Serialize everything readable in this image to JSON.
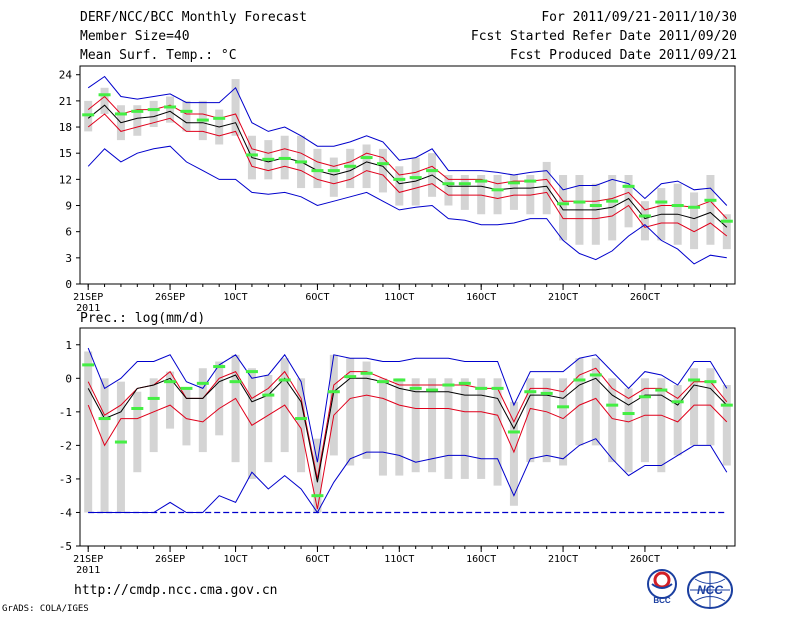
{
  "header": {
    "title": "DERF/NCC/BCC Monthly Forecast",
    "member_size": "Member Size=40",
    "panel1_var": "Mean Surf. Temp.: °C",
    "period": "For 2011/09/21-2011/10/30",
    "fcst_started": "Fcst Started Refer Date 2011/09/20",
    "fcst_produced": "Fcst Produced Date 2011/09/21"
  },
  "footer": {
    "url": "http://cmdp.ncc.cma.gov.cn",
    "grads": "GrADS: COLA/IGES",
    "logo_bcc": "BCC",
    "logo_ncc": "NCC"
  },
  "colors": {
    "ensemble_mean": "#000000",
    "spread_band": "#e0001b",
    "envelope": "#0000cc",
    "member_box": "#d4d4d4",
    "member_median": "#44ee44",
    "climatology_floor": "#0000cc"
  },
  "chart_data": [
    {
      "type": "line",
      "title": "Mean Surf. Temp.: °C",
      "ylim": [
        0,
        25
      ],
      "yticks": [
        0,
        3,
        6,
        9,
        12,
        15,
        18,
        21,
        24
      ],
      "xlim": [
        0.5,
        40.5
      ],
      "xticks": [
        {
          "day": 1,
          "label": "21SEP",
          "sub": "2011"
        },
        {
          "day": 6,
          "label": "26SEP",
          "sub": ""
        },
        {
          "day": 10,
          "label": "1OCT",
          "sub": ""
        },
        {
          "day": 15,
          "label": "6OCT",
          "sub": ""
        },
        {
          "day": 20,
          "label": "11OCT",
          "sub": ""
        },
        {
          "day": 25,
          "label": "16OCT",
          "sub": ""
        },
        {
          "day": 30,
          "label": "21OCT",
          "sub": ""
        },
        {
          "day": 35,
          "label": "26OCT",
          "sub": ""
        }
      ],
      "series": [
        {
          "name": "max",
          "values": [
            22.5,
            23.8,
            21.5,
            21.2,
            21.5,
            21.8,
            20.8,
            20.8,
            20.8,
            22.5,
            18.5,
            17.5,
            18.0,
            17.0,
            15.8,
            15.8,
            16.3,
            17.0,
            16.3,
            14.2,
            14.5,
            15.5,
            13.0,
            13.0,
            13.0,
            12.8,
            12.5,
            12.8,
            13.0,
            10.8,
            11.3,
            11.3,
            12.0,
            11.5,
            9.8,
            11.5,
            11.8,
            10.8,
            11.0,
            9.0
          ]
        },
        {
          "name": "mean_plus_sd",
          "values": [
            20.0,
            21.5,
            19.5,
            20.0,
            20.0,
            20.5,
            19.5,
            19.5,
            19.0,
            19.5,
            15.5,
            15.0,
            15.5,
            15.0,
            14.0,
            13.5,
            14.0,
            15.0,
            14.5,
            12.5,
            12.8,
            13.5,
            12.0,
            12.0,
            12.0,
            11.5,
            11.8,
            11.8,
            12.0,
            9.5,
            9.5,
            9.5,
            9.8,
            10.5,
            8.5,
            9.0,
            9.0,
            8.8,
            9.5,
            7.5
          ]
        },
        {
          "name": "mean",
          "values": [
            19.0,
            20.5,
            18.5,
            19.0,
            19.2,
            19.8,
            18.5,
            18.5,
            18.0,
            18.5,
            14.5,
            14.0,
            14.5,
            14.0,
            13.0,
            12.5,
            13.0,
            14.0,
            13.5,
            11.5,
            11.8,
            12.5,
            11.2,
            11.2,
            11.2,
            10.8,
            11.0,
            11.0,
            11.2,
            8.5,
            8.5,
            8.5,
            8.8,
            9.8,
            7.5,
            8.0,
            8.0,
            7.5,
            8.2,
            6.5
          ]
        },
        {
          "name": "mean_minus_sd",
          "values": [
            18.0,
            19.5,
            17.5,
            18.0,
            18.5,
            19.0,
            17.5,
            17.5,
            17.0,
            17.5,
            13.5,
            13.0,
            13.5,
            13.0,
            12.0,
            11.5,
            12.0,
            13.0,
            12.5,
            10.5,
            11.0,
            11.5,
            10.2,
            10.2,
            10.2,
            9.8,
            10.2,
            10.2,
            10.5,
            7.5,
            7.5,
            7.5,
            7.8,
            9.0,
            6.5,
            7.0,
            7.0,
            6.0,
            7.0,
            5.5
          ]
        },
        {
          "name": "min",
          "values": [
            13.5,
            15.5,
            14.0,
            15.0,
            15.5,
            15.8,
            14.0,
            13.0,
            12.0,
            12.0,
            10.5,
            10.3,
            10.5,
            10.0,
            9.0,
            9.5,
            10.0,
            10.5,
            9.5,
            8.5,
            8.8,
            9.0,
            7.5,
            7.3,
            6.8,
            6.8,
            7.0,
            7.5,
            7.5,
            5.0,
            3.5,
            2.8,
            3.8,
            5.5,
            6.8,
            5.0,
            4.0,
            2.3,
            3.3,
            3.0
          ]
        }
      ],
      "box_q1": [
        17.5,
        19.5,
        16.5,
        17.0,
        18.0,
        18.5,
        17.5,
        16.5,
        16.0,
        17.0,
        12.0,
        12.0,
        12.0,
        11.0,
        11.0,
        10.0,
        11.0,
        11.0,
        10.5,
        9.0,
        9.0,
        10.0,
        9.0,
        8.5,
        8.0,
        8.0,
        8.5,
        8.0,
        8.0,
        5.0,
        4.5,
        4.5,
        5.0,
        6.5,
        5.0,
        5.0,
        4.5,
        4.0,
        4.5,
        4.0
      ],
      "box_q3": [
        21.0,
        22.5,
        20.5,
        20.5,
        21.0,
        21.5,
        21.0,
        21.0,
        20.0,
        23.5,
        17.0,
        16.5,
        17.0,
        17.0,
        15.5,
        14.5,
        15.5,
        16.0,
        15.5,
        13.5,
        14.5,
        15.0,
        12.5,
        12.5,
        12.5,
        12.5,
        12.5,
        12.5,
        14.0,
        12.5,
        12.5,
        11.5,
        12.5,
        12.5,
        9.5,
        11.0,
        11.5,
        10.5,
        12.5,
        8.0
      ],
      "median_markers": [
        19.4,
        21.7,
        19.5,
        19.8,
        20.0,
        20.3,
        19.8,
        18.8,
        19.0,
        null,
        14.8,
        14.3,
        14.4,
        14.0,
        13.0,
        13.0,
        13.5,
        14.5,
        13.8,
        12.0,
        12.2,
        13.0,
        11.5,
        11.5,
        11.8,
        10.8,
        11.6,
        11.8,
        null,
        9.2,
        9.4,
        9.0,
        9.5,
        11.2,
        7.8,
        9.4,
        9.0,
        8.8,
        9.6,
        7.2
      ]
    },
    {
      "type": "line",
      "title": "Prec.: log(mm/d)",
      "ylim": [
        -5,
        1.5
      ],
      "yticks": [
        -5,
        -4,
        -3,
        -2,
        -1,
        0,
        1
      ],
      "xlim": [
        0.5,
        40.5
      ],
      "xticks": [
        {
          "day": 1,
          "label": "21SEP",
          "sub": "2011"
        },
        {
          "day": 6,
          "label": "26SEP",
          "sub": ""
        },
        {
          "day": 10,
          "label": "1OCT",
          "sub": ""
        },
        {
          "day": 15,
          "label": "6OCT",
          "sub": ""
        },
        {
          "day": 20,
          "label": "11OCT",
          "sub": ""
        },
        {
          "day": 25,
          "label": "16OCT",
          "sub": ""
        },
        {
          "day": 30,
          "label": "21OCT",
          "sub": ""
        },
        {
          "day": 35,
          "label": "26OCT",
          "sub": ""
        }
      ],
      "series": [
        {
          "name": "max",
          "values": [
            0.9,
            -0.3,
            0.0,
            0.5,
            0.5,
            0.7,
            -0.1,
            -0.3,
            0.4,
            0.7,
            0.0,
            0.1,
            0.7,
            -0.1,
            -2.5,
            0.7,
            0.6,
            0.6,
            0.5,
            0.5,
            0.6,
            0.6,
            0.6,
            0.5,
            0.5,
            0.5,
            -0.8,
            0.2,
            0.2,
            0.2,
            0.6,
            0.7,
            0.2,
            -0.3,
            0.2,
            0.1,
            -0.2,
            0.5,
            0.5,
            -0.3
          ]
        },
        {
          "name": "mean_plus_sd",
          "values": [
            -0.1,
            -1.1,
            -0.8,
            -0.3,
            -0.2,
            0.2,
            -0.6,
            -0.6,
            0.0,
            0.2,
            -0.6,
            -0.3,
            0.2,
            -0.6,
            -3.0,
            -0.2,
            0.2,
            0.2,
            0.0,
            -0.2,
            -0.2,
            -0.2,
            -0.2,
            -0.2,
            -0.3,
            -0.3,
            -1.3,
            -0.3,
            -0.3,
            -0.4,
            0.1,
            0.3,
            -0.3,
            -0.6,
            -0.3,
            -0.3,
            -0.6,
            -0.1,
            -0.1,
            -0.7
          ]
        },
        {
          "name": "mean",
          "values": [
            -0.3,
            -1.2,
            -1.0,
            -0.3,
            -0.2,
            0.0,
            -0.6,
            -0.6,
            -0.1,
            0.1,
            -0.7,
            -0.5,
            0.0,
            -0.7,
            -3.1,
            -0.4,
            0.0,
            0.0,
            -0.1,
            -0.3,
            -0.4,
            -0.4,
            -0.4,
            -0.5,
            -0.5,
            -0.6,
            -1.5,
            -0.5,
            -0.5,
            -0.6,
            -0.2,
            0.0,
            -0.5,
            -0.8,
            -0.5,
            -0.5,
            -0.8,
            -0.2,
            -0.3,
            -0.8
          ]
        },
        {
          "name": "mean_minus_sd",
          "values": [
            -0.8,
            -2.0,
            -1.2,
            -1.2,
            -1.0,
            -0.8,
            -1.2,
            -1.3,
            -0.9,
            -0.6,
            -1.4,
            -1.1,
            -0.8,
            -1.5,
            -3.9,
            -1.1,
            -0.6,
            -0.5,
            -0.6,
            -0.8,
            -0.9,
            -0.9,
            -0.9,
            -1.0,
            -1.0,
            -1.1,
            -2.2,
            -0.9,
            -1.0,
            -1.2,
            -0.8,
            -0.6,
            -1.2,
            -1.3,
            -1.1,
            -1.1,
            -1.3,
            -0.8,
            -0.8,
            -1.3
          ]
        },
        {
          "name": "min",
          "values": [
            -4.0,
            -4.0,
            -4.0,
            -4.0,
            -4.0,
            -3.7,
            -4.0,
            -4.0,
            -3.5,
            -3.7,
            -2.8,
            -3.3,
            -2.9,
            -3.3,
            -4.0,
            -3.1,
            -2.4,
            -2.2,
            -2.2,
            -2.3,
            -2.5,
            -2.4,
            -2.3,
            -2.3,
            -2.4,
            -2.4,
            -3.5,
            -2.4,
            -2.3,
            -2.4,
            -2.0,
            -1.8,
            -2.4,
            -2.9,
            -2.6,
            -2.6,
            -2.3,
            -2.0,
            -2.0,
            -2.8
          ]
        },
        {
          "name": "floor",
          "values": [
            -4.0,
            -4.0,
            -4.0,
            -4.0,
            -4.0,
            -4.0,
            -4.0,
            -4.0,
            -4.0,
            -4.0,
            -4.0,
            -4.0,
            -4.0,
            -4.0,
            -4.0,
            -4.0,
            -4.0,
            -4.0,
            -4.0,
            -4.0,
            -4.0,
            -4.0,
            -4.0,
            -4.0,
            -4.0,
            -4.0,
            -4.0,
            -4.0,
            -4.0,
            -4.0,
            -4.0,
            -4.0,
            -4.0,
            -4.0,
            -4.0,
            -4.0,
            -4.0,
            -4.0,
            -4.0,
            -4.0
          ]
        }
      ],
      "box_q1": [
        -4.0,
        -4.0,
        -4.0,
        -2.8,
        -2.2,
        -1.5,
        -2.0,
        -2.2,
        -1.7,
        -2.5,
        -3.0,
        -2.5,
        -2.2,
        -2.8,
        -4.0,
        -2.3,
        -2.6,
        -2.4,
        -2.9,
        -2.9,
        -2.8,
        -2.8,
        -3.0,
        -3.0,
        -3.0,
        -3.2,
        -3.8,
        -2.5,
        -2.5,
        -2.6,
        -2.0,
        -2.0,
        -2.5,
        -2.8,
        -2.5,
        -2.8,
        -2.3,
        -2.0,
        -2.0,
        -2.6
      ],
      "box_q3": [
        0.8,
        0.0,
        -0.1,
        -0.4,
        0.0,
        0.2,
        -0.3,
        0.3,
        0.5,
        0.7,
        0.3,
        0.1,
        0.6,
        0.0,
        -1.8,
        0.7,
        0.6,
        0.5,
        0.0,
        0.0,
        0.0,
        0.0,
        0.0,
        0.0,
        0.0,
        0.0,
        -0.7,
        0.0,
        0.0,
        0.0,
        0.6,
        0.6,
        0.0,
        -0.3,
        0.0,
        0.0,
        -0.2,
        0.3,
        0.3,
        -0.2
      ],
      "median_markers": [
        0.4,
        -1.2,
        -1.9,
        -0.9,
        -0.6,
        -0.1,
        -0.3,
        -0.15,
        0.35,
        -0.1,
        0.2,
        -0.5,
        -0.05,
        -1.2,
        -3.5,
        -0.4,
        0.05,
        0.15,
        -0.1,
        -0.05,
        -0.3,
        -0.35,
        -0.2,
        -0.15,
        -0.3,
        -0.3,
        -1.6,
        -0.4,
        -0.45,
        -0.85,
        -0.05,
        0.1,
        -0.8,
        -1.05,
        -0.55,
        -0.35,
        -0.7,
        -0.05,
        -0.1,
        -0.8
      ]
    }
  ]
}
